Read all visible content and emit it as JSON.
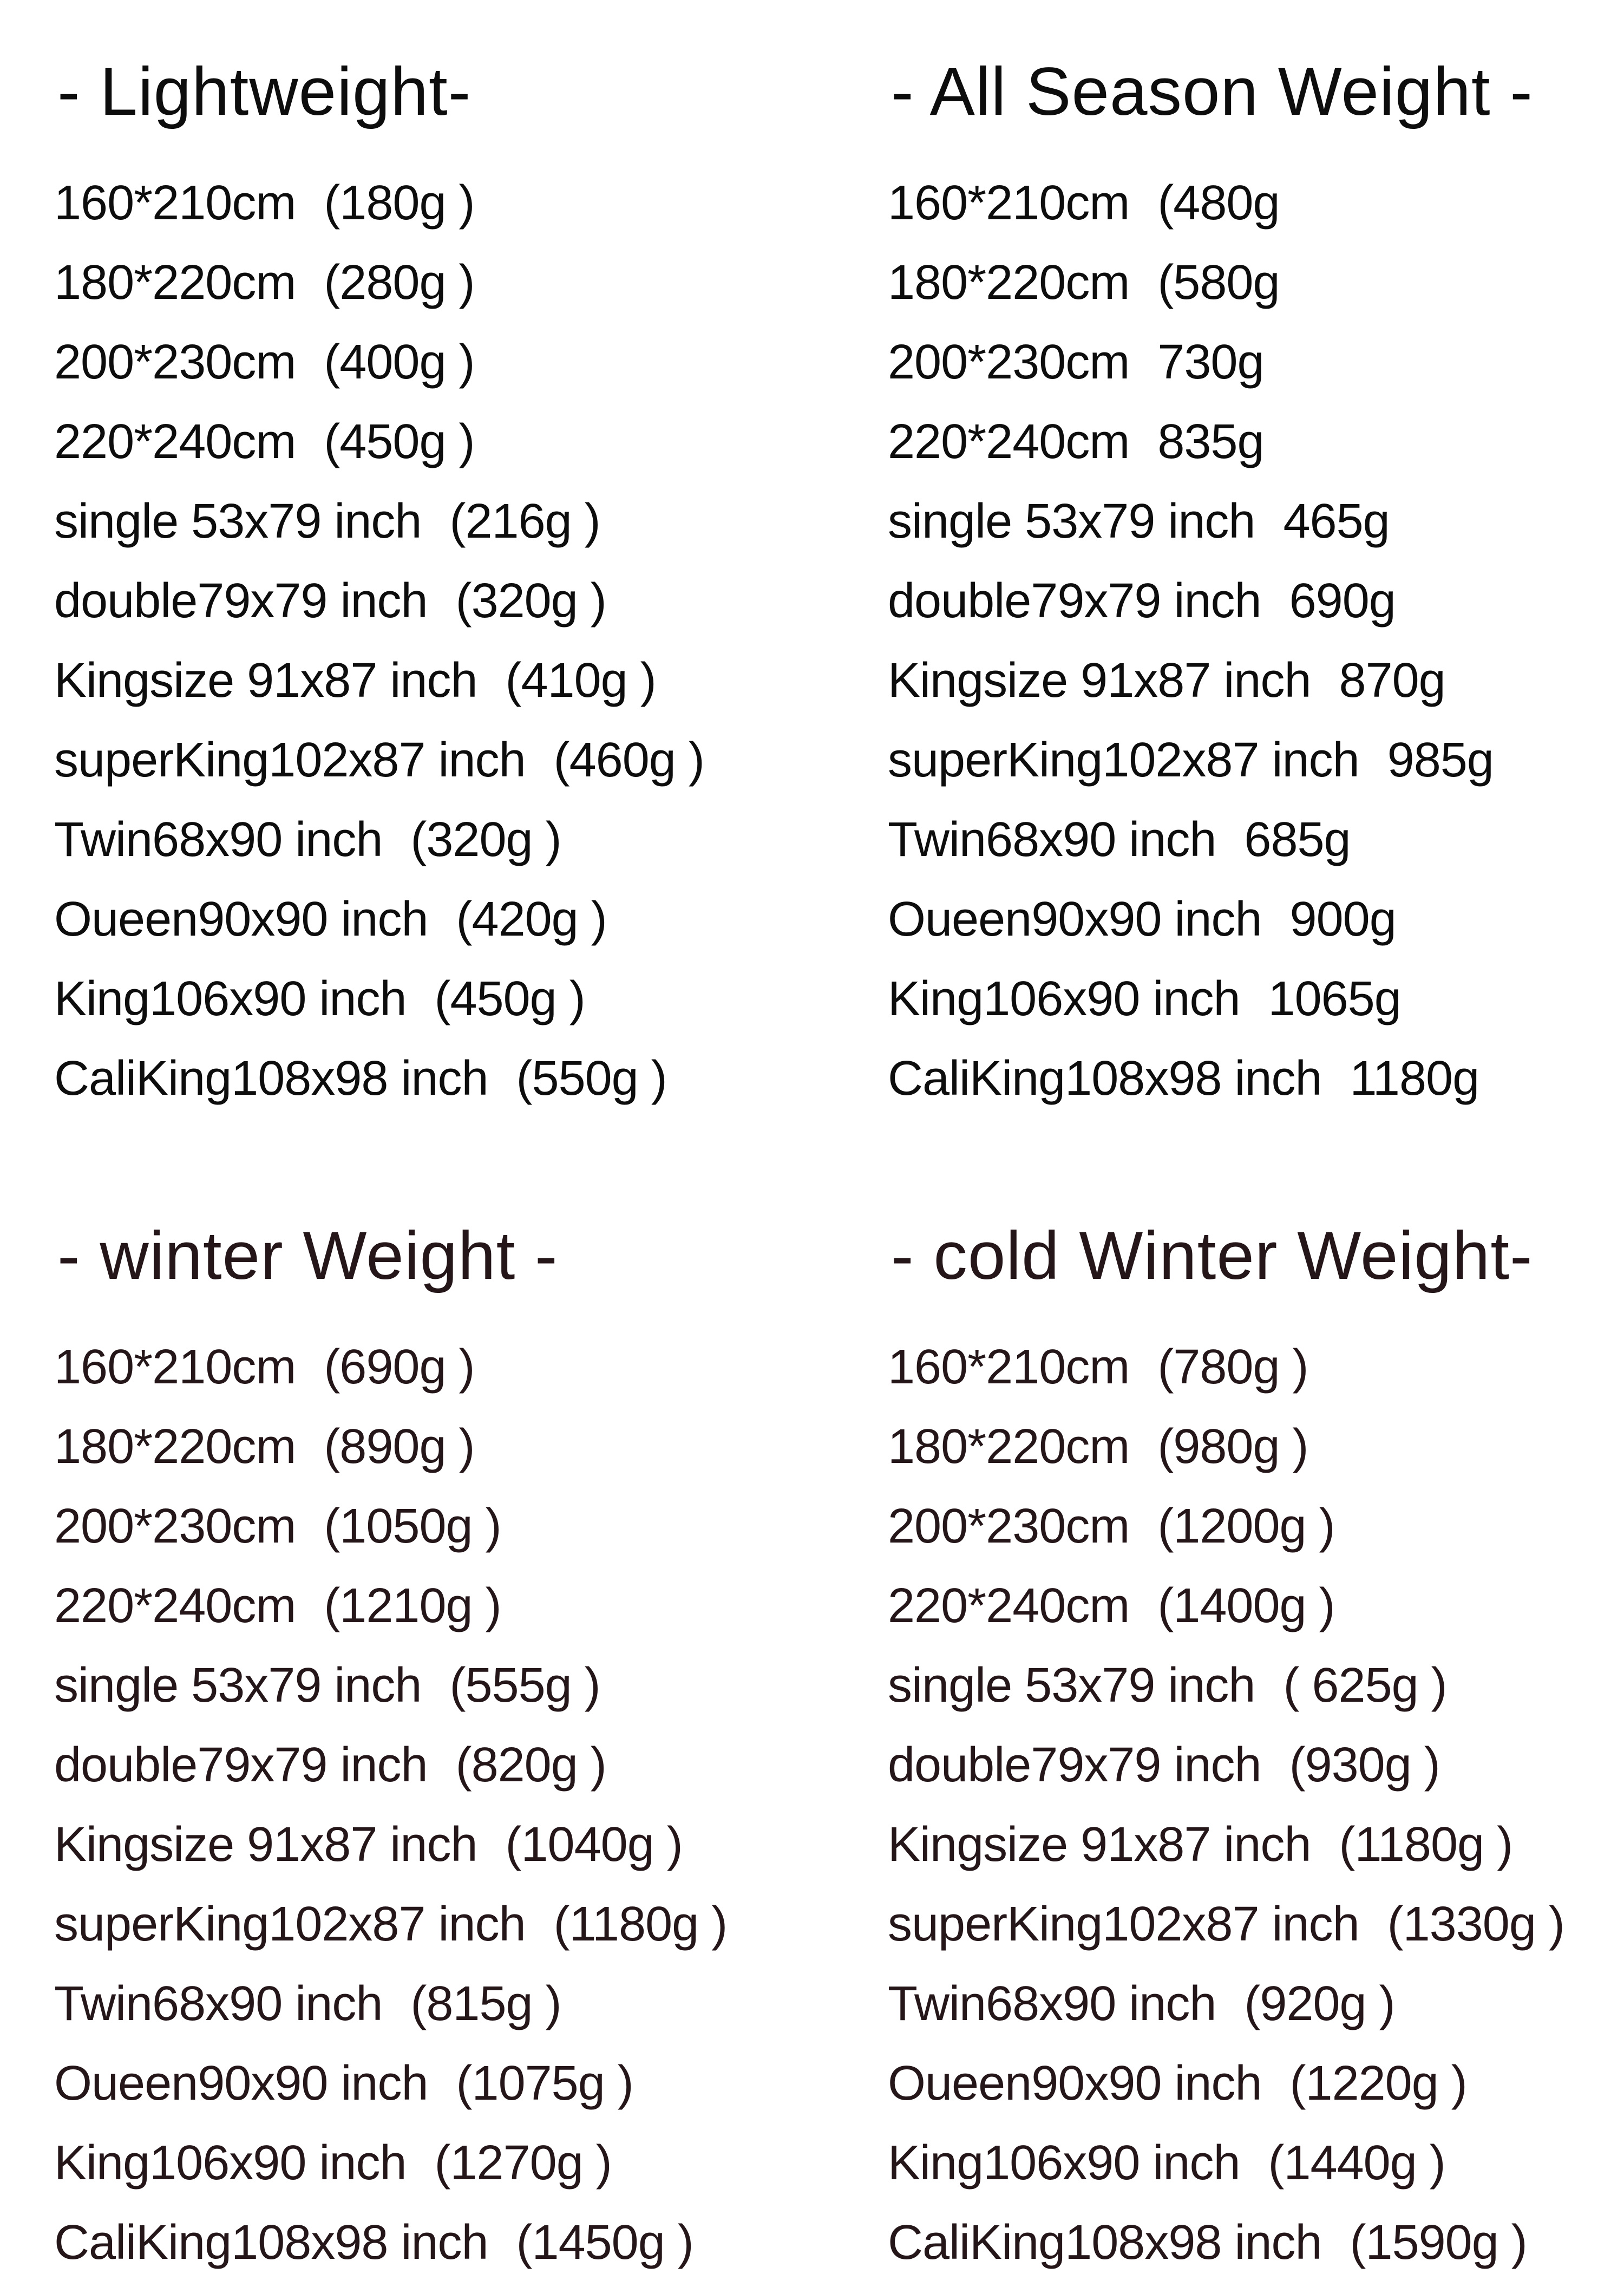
{
  "page": {
    "background": "#ffffff"
  },
  "sections": [
    {
      "id": "lightweight",
      "title": "- Lightweight-",
      "color": "#0d0d0d",
      "rows": [
        {
          "size": "160*210cm",
          "weight": "(180g )"
        },
        {
          "size": "180*220cm",
          "weight": "(280g )"
        },
        {
          "size": "200*230cm",
          "weight": "(400g )"
        },
        {
          "size": "220*240cm",
          "weight": "(450g )"
        },
        {
          "size": "single 53x79 inch",
          "weight": "(216g )"
        },
        {
          "size": "double79x79 inch",
          "weight": "(320g )"
        },
        {
          "size": "Kingsize 91x87 inch",
          "weight": "(410g )"
        },
        {
          "size": "superKing102x87 inch",
          "weight": "(460g )"
        },
        {
          "size": "Twin68x90 inch",
          "weight": "(320g )"
        },
        {
          "size": "Oueen90x90 inch",
          "weight": "(420g )"
        },
        {
          "size": "King106x90 inch",
          "weight": "(450g )"
        },
        {
          "size": "CaliKing108x98 inch",
          "weight": "(550g )"
        }
      ]
    },
    {
      "id": "all-season-weight",
      "title": "- All Season Weight -",
      "color": "#0d0d0d",
      "rows": [
        {
          "size": "160*210cm",
          "weight": "(480g"
        },
        {
          "size": "180*220cm",
          "weight": "(580g"
        },
        {
          "size": "200*230cm",
          "weight": "730g"
        },
        {
          "size": "220*240cm",
          "weight": "835g"
        },
        {
          "size": "single 53x79 inch",
          "weight": "465g"
        },
        {
          "size": "double79x79 inch",
          "weight": "690g"
        },
        {
          "size": "Kingsize 91x87 inch",
          "weight": "870g"
        },
        {
          "size": "superKing102x87 inch",
          "weight": "985g"
        },
        {
          "size": "Twin68x90 inch",
          "weight": "685g"
        },
        {
          "size": "Oueen90x90 inch",
          "weight": "900g"
        },
        {
          "size": "King106x90 inch",
          "weight": "1065g"
        },
        {
          "size": "CaliKing108x98 inch",
          "weight": "1180g"
        }
      ]
    },
    {
      "id": "winter-weight",
      "title": "- winter Weight -",
      "color": "#241619",
      "rows": [
        {
          "size": "160*210cm",
          "weight": "(690g )"
        },
        {
          "size": "180*220cm",
          "weight": "(890g )"
        },
        {
          "size": "200*230cm",
          "weight": "(1050g )"
        },
        {
          "size": "220*240cm",
          "weight": "(1210g )"
        },
        {
          "size": "single 53x79 inch",
          "weight": "(555g )"
        },
        {
          "size": "double79x79 inch",
          "weight": "(820g )"
        },
        {
          "size": "Kingsize 91x87 inch",
          "weight": "(1040g )"
        },
        {
          "size": "superKing102x87 inch",
          "weight": "(1180g )"
        },
        {
          "size": "Twin68x90 inch",
          "weight": "(815g )"
        },
        {
          "size": "Oueen90x90 inch",
          "weight": "(1075g )"
        },
        {
          "size": "King106x90 inch",
          "weight": "(1270g )"
        },
        {
          "size": "CaliKing108x98 inch",
          "weight": "(1450g )"
        }
      ]
    },
    {
      "id": "cold-winter-weight",
      "title": "- cold Winter Weight-",
      "color": "#241619",
      "rows": [
        {
          "size": "160*210cm",
          "weight": "(780g )"
        },
        {
          "size": "180*220cm",
          "weight": "(980g )"
        },
        {
          "size": "200*230cm",
          "weight": "(1200g )"
        },
        {
          "size": "220*240cm",
          "weight": "(1400g )"
        },
        {
          "size": "single 53x79 inch",
          "weight": "( 625g )"
        },
        {
          "size": "double79x79 inch",
          "weight": "(930g )"
        },
        {
          "size": "Kingsize 91x87 inch",
          "weight": "(1180g )"
        },
        {
          "size": "superKing102x87 inch",
          "weight": "(1330g )"
        },
        {
          "size": "Twin68x90 inch",
          "weight": "(920g )"
        },
        {
          "size": "Oueen90x90 inch",
          "weight": "(1220g )"
        },
        {
          "size": "King106x90 inch",
          "weight": "(1440g )"
        },
        {
          "size": "CaliKing108x98 inch",
          "weight": "(1590g )"
        }
      ]
    }
  ]
}
